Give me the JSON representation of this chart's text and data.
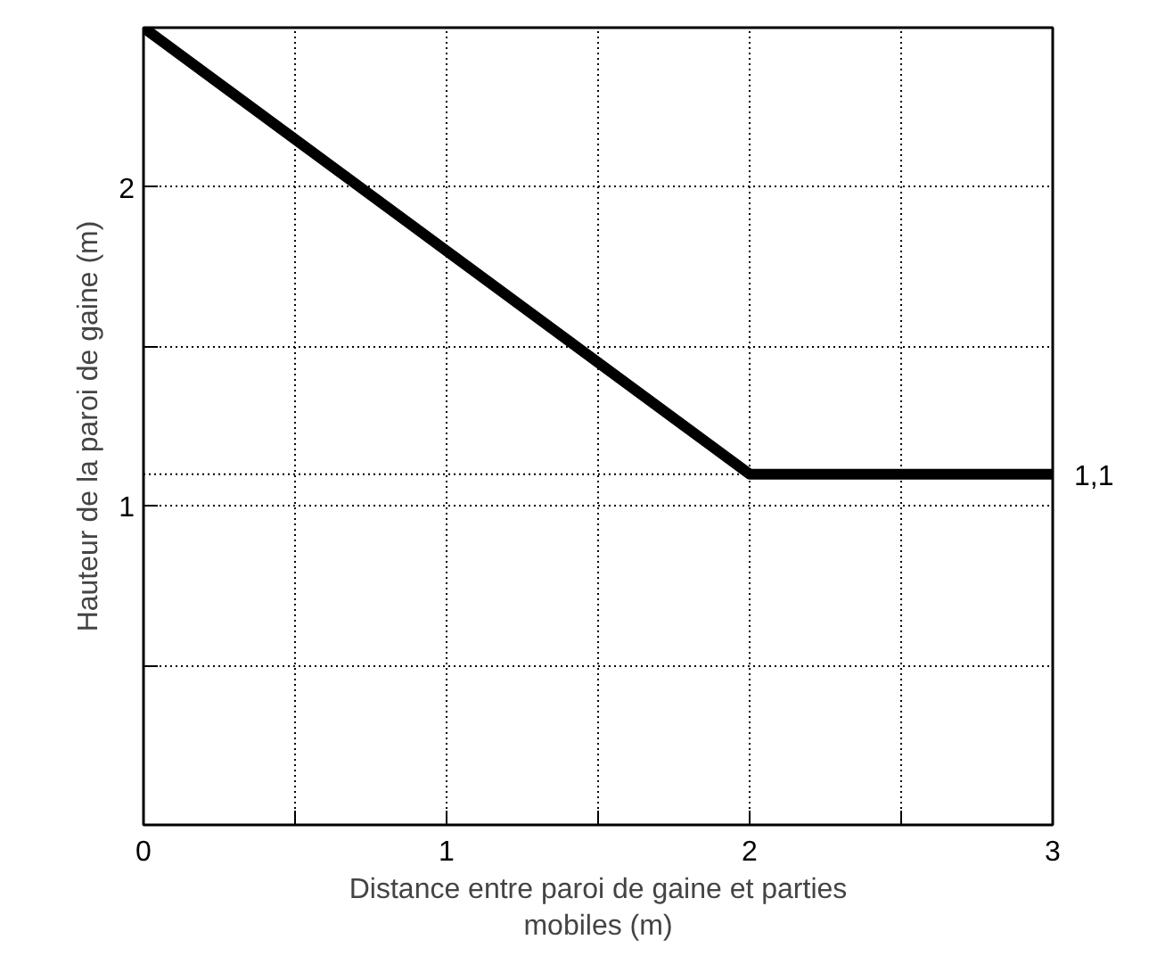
{
  "chart_data": {
    "type": "line",
    "xlabel": "Distance entre paroi de gaine et parties mobiles (m)",
    "ylabel": "Hauteur de la paroi de gaine (m)",
    "x": [
      0,
      2,
      3
    ],
    "series": [
      {
        "color": "#000000",
        "values": [
          2.5,
          1.1,
          1.1
        ]
      }
    ],
    "xlim": [
      0,
      3
    ],
    "ylim": [
      0,
      2.5
    ],
    "xticks": [
      0,
      {
        "value": 0.5,
        "label": null
      },
      1,
      {
        "value": 1.5,
        "label": null
      },
      2,
      {
        "value": 2.5,
        "label": null
      },
      3
    ],
    "yticks": [
      {
        "value": 0.5,
        "label": null
      },
      1,
      {
        "value": 1.5,
        "label": null
      },
      2
    ],
    "grid": true,
    "marker": "none",
    "line_style": "solid",
    "ref_lines": [
      {
        "axis": "y",
        "value": 1.1,
        "label": "1,1",
        "line_style": "dotted",
        "color": "#000000"
      }
    ]
  }
}
